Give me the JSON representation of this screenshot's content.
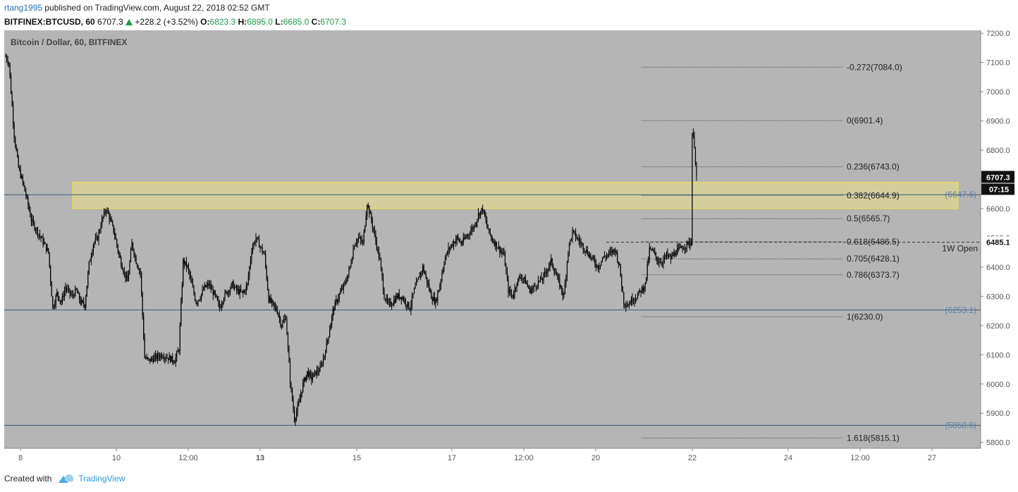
{
  "header": {
    "author": "rtang1995",
    "published_text": " published on TradingView.com, August 22, 2018 02:52 GMT",
    "symbol": "BITFINEX:BTCUSD, 60",
    "price": "6707.3",
    "change": "+228.2 (+3.52%)",
    "o_label": "O:",
    "o": "6823.3",
    "h_label": "H:",
    "h": "6895.0",
    "l_label": "L:",
    "l": "6685.0",
    "c_label": "C:",
    "c": "6707.3"
  },
  "footer": {
    "created_with": "Created with",
    "brand": "TradingView"
  },
  "colors": {
    "pane_bg": "#b5b5b5",
    "candle": "#000000",
    "zone_fill": "#e8e08a",
    "zone_border": "#f0e24a",
    "hline": "#3a5a7a",
    "fib_line": "#555555",
    "axis_text": "#555555",
    "level_label": "#5a7fa8"
  },
  "chart_data": {
    "type": "candlestick",
    "title": "Bitcoin / Dollar, 60, BITFINEX",
    "ylim": [
      5780,
      7210
    ],
    "y_ticks": [
      5800,
      5900,
      6000,
      6100,
      6200,
      6300,
      6400,
      6500,
      6600,
      6700,
      6800,
      6900,
      7000,
      7100,
      7200
    ],
    "x_ticks": [
      "8",
      "10",
      "12:00",
      "13",
      "15",
      "17",
      "12:00",
      "20",
      "22",
      "24",
      "12:00",
      "27"
    ],
    "x_ticks_bold": [
      "13"
    ],
    "series": [
      {
        "path": [
          [
            0,
            7120
          ],
          [
            3,
            7100
          ],
          [
            8,
            6850
          ],
          [
            12,
            6740
          ],
          [
            16,
            6690
          ],
          [
            20,
            6630
          ],
          [
            24,
            6560
          ],
          [
            30,
            6520
          ],
          [
            36,
            6480
          ],
          [
            40,
            6450
          ],
          [
            44,
            6260
          ],
          [
            48,
            6310
          ],
          [
            52,
            6280
          ],
          [
            56,
            6330
          ],
          [
            62,
            6300
          ],
          [
            66,
            6320
          ],
          [
            70,
            6280
          ],
          [
            74,
            6270
          ],
          [
            78,
            6410
          ],
          [
            82,
            6480
          ],
          [
            86,
            6500
          ],
          [
            90,
            6560
          ],
          [
            94,
            6600
          ],
          [
            98,
            6560
          ],
          [
            102,
            6510
          ],
          [
            106,
            6440
          ],
          [
            110,
            6390
          ],
          [
            114,
            6350
          ],
          [
            118,
            6480
          ],
          [
            122,
            6420
          ],
          [
            126,
            6380
          ],
          [
            130,
            6090
          ],
          [
            134,
            6080
          ],
          [
            140,
            6090
          ],
          [
            146,
            6100
          ],
          [
            152,
            6090
          ],
          [
            158,
            6080
          ],
          [
            162,
            6120
          ],
          [
            166,
            6420
          ],
          [
            170,
            6400
          ],
          [
            174,
            6340
          ],
          [
            178,
            6280
          ],
          [
            182,
            6300
          ],
          [
            186,
            6330
          ],
          [
            190,
            6340
          ],
          [
            196,
            6300
          ],
          [
            200,
            6260
          ],
          [
            204,
            6300
          ],
          [
            208,
            6320
          ],
          [
            212,
            6340
          ],
          [
            216,
            6320
          ],
          [
            222,
            6310
          ],
          [
            226,
            6340
          ],
          [
            230,
            6460
          ],
          [
            234,
            6500
          ],
          [
            238,
            6470
          ],
          [
            242,
            6440
          ],
          [
            246,
            6290
          ],
          [
            250,
            6270
          ],
          [
            254,
            6250
          ],
          [
            258,
            6200
          ],
          [
            262,
            6230
          ],
          [
            266,
            6010
          ],
          [
            270,
            5880
          ],
          [
            274,
            5930
          ],
          [
            278,
            6000
          ],
          [
            282,
            6040
          ],
          [
            286,
            6020
          ],
          [
            290,
            6040
          ],
          [
            294,
            6050
          ],
          [
            298,
            6100
          ],
          [
            302,
            6170
          ],
          [
            306,
            6250
          ],
          [
            310,
            6290
          ],
          [
            314,
            6320
          ],
          [
            318,
            6350
          ],
          [
            322,
            6400
          ],
          [
            326,
            6480
          ],
          [
            330,
            6500
          ],
          [
            334,
            6480
          ],
          [
            338,
            6620
          ],
          [
            342,
            6560
          ],
          [
            346,
            6490
          ],
          [
            350,
            6420
          ],
          [
            354,
            6300
          ],
          [
            358,
            6270
          ],
          [
            362,
            6280
          ],
          [
            366,
            6300
          ],
          [
            370,
            6300
          ],
          [
            374,
            6280
          ],
          [
            378,
            6260
          ],
          [
            382,
            6320
          ],
          [
            386,
            6360
          ],
          [
            390,
            6400
          ],
          [
            394,
            6350
          ],
          [
            398,
            6300
          ],
          [
            402,
            6280
          ],
          [
            406,
            6340
          ],
          [
            410,
            6420
          ],
          [
            414,
            6460
          ],
          [
            418,
            6480
          ],
          [
            422,
            6500
          ],
          [
            426,
            6480
          ],
          [
            430,
            6500
          ],
          [
            434,
            6520
          ],
          [
            438,
            6540
          ],
          [
            442,
            6580
          ],
          [
            446,
            6600
          ],
          [
            450,
            6540
          ],
          [
            454,
            6500
          ],
          [
            458,
            6480
          ],
          [
            462,
            6460
          ],
          [
            466,
            6440
          ],
          [
            470,
            6320
          ],
          [
            474,
            6300
          ],
          [
            478,
            6350
          ],
          [
            482,
            6370
          ],
          [
            486,
            6350
          ],
          [
            490,
            6320
          ],
          [
            494,
            6330
          ],
          [
            498,
            6350
          ],
          [
            502,
            6360
          ],
          [
            506,
            6390
          ],
          [
            510,
            6420
          ],
          [
            514,
            6380
          ],
          [
            518,
            6340
          ],
          [
            522,
            6300
          ],
          [
            526,
            6460
          ],
          [
            530,
            6520
          ],
          [
            534,
            6500
          ],
          [
            538,
            6480
          ],
          [
            542,
            6460
          ],
          [
            546,
            6440
          ],
          [
            550,
            6420
          ],
          [
            554,
            6400
          ],
          [
            558,
            6430
          ],
          [
            562,
            6440
          ],
          [
            566,
            6450
          ],
          [
            570,
            6460
          ],
          [
            574,
            6400
          ],
          [
            578,
            6280
          ],
          [
            582,
            6270
          ],
          [
            586,
            6290
          ],
          [
            590,
            6300
          ],
          [
            594,
            6320
          ],
          [
            598,
            6340
          ],
          [
            602,
            6460
          ],
          [
            606,
            6450
          ],
          [
            610,
            6420
          ],
          [
            614,
            6420
          ],
          [
            618,
            6440
          ],
          [
            622,
            6430
          ],
          [
            626,
            6450
          ],
          [
            630,
            6460
          ],
          [
            634,
            6470
          ],
          [
            638,
            6480
          ],
          [
            641,
            6485
          ],
          [
            642,
            6860
          ],
          [
            644,
            6820
          ],
          [
            646,
            6707
          ]
        ],
        "n_candles": 647
      }
    ],
    "horizontal_levels": [
      {
        "value": 6647.6,
        "label": "(6647.6)"
      },
      {
        "value": 6253.1,
        "label": "(6253.1)"
      },
      {
        "value": 5858.6,
        "label": "(5858.6)"
      }
    ],
    "zone": {
      "from": 6600,
      "to": 6690
    },
    "fib_levels": [
      {
        "ratio": "-0.272",
        "value": 7084.0,
        "label": "-0.272(7084.0)"
      },
      {
        "ratio": "0",
        "value": 6901.4,
        "label": "0(6901.4)"
      },
      {
        "ratio": "0.236",
        "value": 6743.0,
        "label": "0.236(6743.0)"
      },
      {
        "ratio": "0.382",
        "value": 6644.9,
        "label": "0.382(6644.9)"
      },
      {
        "ratio": "0.5",
        "value": 6565.7,
        "label": "0.5(6565.7)"
      },
      {
        "ratio": "0.618",
        "value": 6486.5,
        "label": "0.618(6486.5)"
      },
      {
        "ratio": "0.705",
        "value": 6428.1,
        "label": "0.705(6428.1)"
      },
      {
        "ratio": "0.786",
        "value": 6373.7,
        "label": "0.786(6373.7)"
      },
      {
        "ratio": "1",
        "value": 6230.0,
        "label": "1(6230.0)"
      },
      {
        "ratio": "1.618",
        "value": 5815.1,
        "label": "1.618(5815.1)"
      }
    ],
    "weekly_open": {
      "value": 6485.1,
      "label": "1W Open",
      "tag": "6485.1"
    },
    "last_price": {
      "value": 6707.3,
      "tag": "6707.3",
      "countdown": "07:15"
    }
  }
}
